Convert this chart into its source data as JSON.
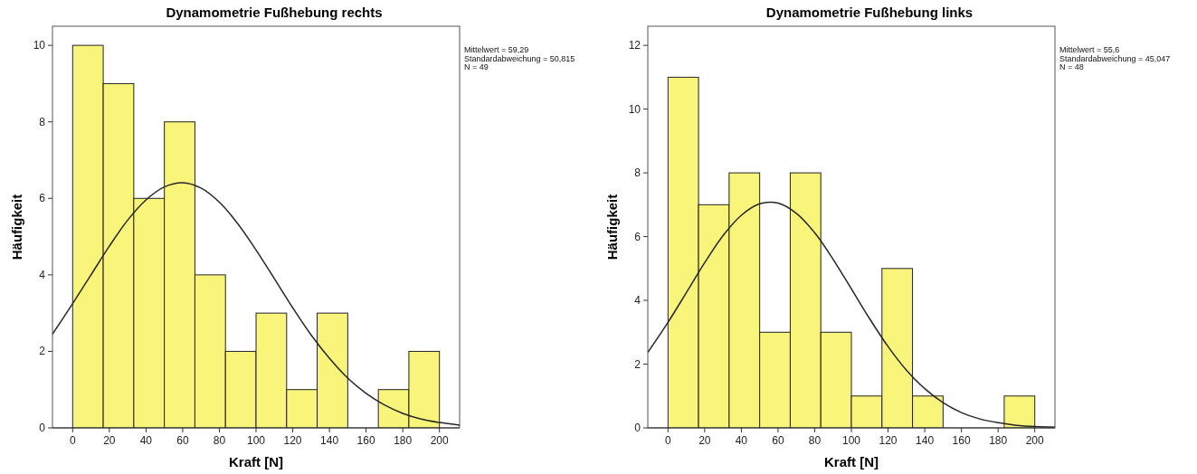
{
  "chart_data": [
    {
      "type": "histogram",
      "title": "Dynamometrie Fußhebung rechts",
      "xlabel": "Kraft [N]",
      "ylabel": "Häufigkeit",
      "color": "#f9f57a",
      "bins": [
        0,
        16.67,
        33.33,
        50,
        66.67,
        83.33,
        100,
        116.67,
        133.33,
        150,
        166.67,
        183.33,
        200
      ],
      "values": [
        10,
        9,
        6,
        8,
        4,
        2,
        3,
        1,
        3,
        0,
        1,
        2
      ],
      "series": [
        {
          "type": "line",
          "color": "#262626",
          "x": [
            -11,
            0,
            10,
            20,
            30,
            40,
            50,
            60,
            70,
            80,
            90,
            100,
            110,
            120,
            130,
            140,
            150,
            160,
            170,
            180,
            190,
            200,
            211
          ],
          "values": [
            2.45,
            3.25,
            4.0,
            4.75,
            5.43,
            5.96,
            6.3,
            6.41,
            6.27,
            5.9,
            5.34,
            4.65,
            3.9,
            3.14,
            2.43,
            1.82,
            1.3,
            0.9,
            0.6,
            0.38,
            0.23,
            0.14,
            0.07
          ]
        }
      ],
      "xlim": [
        -11,
        211
      ],
      "ylim": [
        0,
        10.5
      ],
      "xticks": [
        0,
        20,
        40,
        60,
        80,
        100,
        120,
        140,
        160,
        180,
        200
      ],
      "yticks": [
        0,
        2,
        4,
        6,
        8,
        10
      ],
      "grid": false,
      "annotations": [
        "Mittelwert = 59,29",
        "Standardabweichung = 50,815",
        "N = 49"
      ]
    },
    {
      "type": "histogram",
      "title": "Dynamometrie Fußhebung links",
      "xlabel": "Kraft [N]",
      "ylabel": "Häufigkeit",
      "color": "#f9f57a",
      "bins": [
        0,
        16.67,
        33.33,
        50,
        66.67,
        83.33,
        100,
        116.67,
        133.33,
        150,
        166.67,
        183.33,
        200
      ],
      "values": [
        11,
        7,
        8,
        3,
        8,
        3,
        1,
        5,
        1,
        0,
        0,
        1
      ],
      "series": [
        {
          "type": "line",
          "color": "#262626",
          "x": [
            -11,
            0,
            10,
            20,
            30,
            40,
            50,
            60,
            70,
            80,
            90,
            100,
            110,
            120,
            130,
            140,
            150,
            160,
            170,
            180,
            190,
            200,
            211
          ],
          "values": [
            2.37,
            3.31,
            4.24,
            5.18,
            6.03,
            6.67,
            7.03,
            7.05,
            6.73,
            6.12,
            5.29,
            4.36,
            3.42,
            2.55,
            1.81,
            1.23,
            0.79,
            0.48,
            0.28,
            0.16,
            0.08,
            0.04,
            0.02
          ]
        }
      ],
      "xlim": [
        -11,
        211
      ],
      "ylim": [
        0,
        12.6
      ],
      "xticks": [
        0,
        20,
        40,
        60,
        80,
        100,
        120,
        140,
        160,
        180,
        200
      ],
      "yticks": [
        0,
        2,
        4,
        6,
        8,
        10,
        12
      ],
      "grid": false,
      "annotations": [
        "Mittelwert = 55,6",
        "Standardabweichung = 45,047",
        "N = 48"
      ]
    }
  ]
}
